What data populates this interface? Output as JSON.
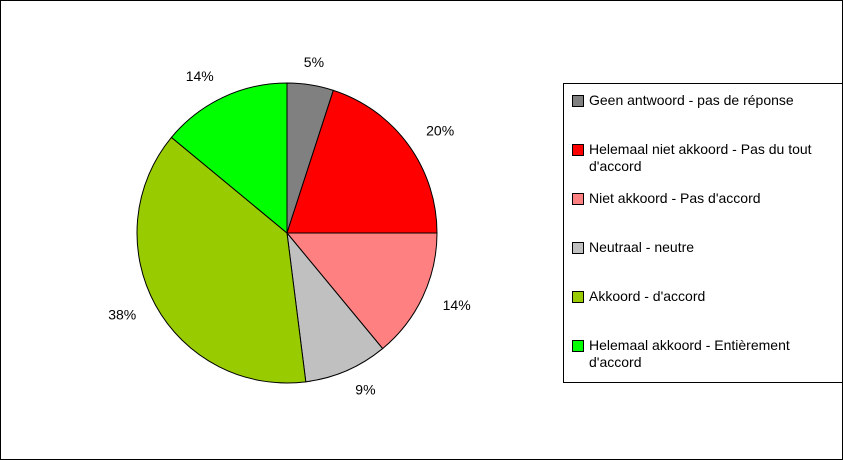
{
  "chart_data": {
    "type": "pie",
    "categories": [
      "Geen antwoord - pas de réponse",
      "Helemaal niet akkoord - Pas du tout d'accord",
      "Niet akkoord - Pas d'accord",
      "Neutraal - neutre",
      "Akkoord - d'accord",
      "Helemaal akkoord - Entièrement d'accord"
    ],
    "values": [
      5,
      20,
      14,
      9,
      38,
      14
    ],
    "value_labels": [
      "5%",
      "20%",
      "14%",
      "9%",
      "38%",
      "14%"
    ],
    "colors": [
      "#808080",
      "#ff0000",
      "#ff8080",
      "#c0c0c0",
      "#99cc00",
      "#00ff00"
    ],
    "legend": "right"
  }
}
